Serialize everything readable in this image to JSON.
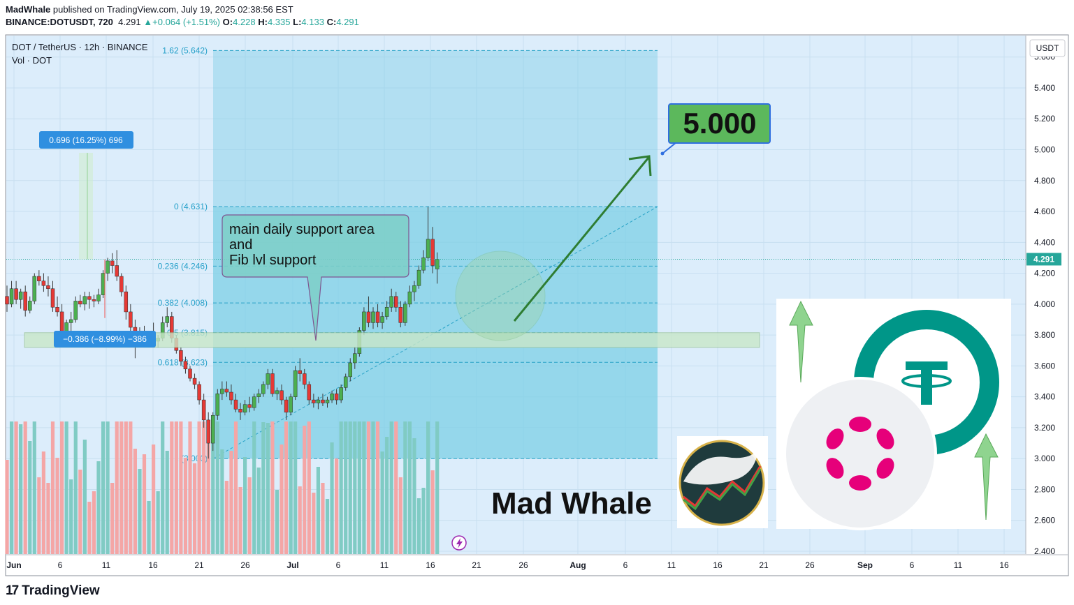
{
  "header": {
    "author": "MadWhale",
    "published_text": "published on TradingView.com, July 19, 2025 02:38:56 EST",
    "symbol": "BINANCE:DOTUSDT, 720",
    "last": "4.291",
    "change": "+0.064 (+1.51%)",
    "o_label": "O:",
    "o": "4.228",
    "h_label": "H:",
    "h": "4.335",
    "l_label": "L:",
    "l": "4.133",
    "c_label": "C:",
    "c": "4.291"
  },
  "legend": {
    "title": "DOT / TetherUS · 12h · BINANCE",
    "volume": "Vol · DOT"
  },
  "currency_button": "USDT",
  "price_badge": "4.291",
  "footer_brand": "TradingView",
  "annotations": {
    "target_label": "5.000",
    "support_note": [
      "main daily support area",
      "and",
      "Fib lvl support"
    ],
    "measure_up": "0.696 (16.25%) 696",
    "measure_down": "−0.386 (−8.99%) −386",
    "watermark": "Mad Whale"
  },
  "colors": {
    "up": "#26a69a",
    "down": "#ef5350",
    "candle_up": "#4caf50",
    "candle_down": "#e53935",
    "fib_fill": "#7ecfe6",
    "target_box": "#5cb85c",
    "arrow": "#2e7d32",
    "bg": "#dcedfb",
    "tether": "#009688",
    "polkadot": "#e6007a"
  },
  "chart_data": {
    "type": "candlestick",
    "title": "DOT / TetherUS · 12h · BINANCE",
    "ylim": [
      2.4,
      5.68
    ],
    "y_ticks": [
      "5.600",
      "5.400",
      "5.200",
      "5.000",
      "4.800",
      "4.600",
      "4.400",
      "4.200",
      "4.000",
      "3.800",
      "3.600",
      "3.400",
      "3.200",
      "3.000",
      "2.800",
      "2.600",
      "2.400"
    ],
    "x_ticks": [
      "Jun",
      "6",
      "11",
      "16",
      "21",
      "26",
      "Jul",
      "6",
      "11",
      "16",
      "21",
      "26",
      "Aug",
      "6",
      "11",
      "16",
      "21",
      "26",
      "Sep",
      "6",
      "11",
      "16"
    ],
    "fib_levels": [
      {
        "label": "0 (4.631)",
        "price": 4.631
      },
      {
        "label": "0.236 (4.246)",
        "price": 4.246
      },
      {
        "label": "0.382 (4.008)",
        "price": 4.008
      },
      {
        "label": "0.5 (3.815)",
        "price": 3.815
      },
      {
        "label": "0.618 (3.623)",
        "price": 3.623
      },
      {
        "label": "1 (3.000)",
        "price": 3.0
      },
      {
        "label": "1.62 (5.642)",
        "price": 5.642
      }
    ],
    "candles": [
      [
        4.05,
        4.12,
        3.95,
        4.0
      ],
      [
        4.0,
        4.15,
        3.98,
        4.1
      ],
      [
        4.1,
        4.15,
        4.0,
        4.03
      ],
      [
        4.03,
        4.1,
        3.97,
        4.08
      ],
      [
        4.08,
        4.12,
        3.92,
        3.96
      ],
      [
        3.96,
        4.05,
        3.94,
        4.02
      ],
      [
        4.02,
        4.2,
        4.0,
        4.18
      ],
      [
        4.18,
        4.22,
        4.12,
        4.15
      ],
      [
        4.15,
        4.2,
        4.08,
        4.12
      ],
      [
        4.12,
        4.18,
        4.05,
        4.1
      ],
      [
        4.1,
        4.15,
        3.95,
        3.98
      ],
      [
        3.98,
        4.05,
        3.92,
        3.95
      ],
      [
        3.95,
        4.0,
        3.75,
        3.78
      ],
      [
        3.78,
        3.9,
        3.75,
        3.88
      ],
      [
        3.88,
        3.95,
        3.82,
        3.9
      ],
      [
        3.9,
        4.05,
        3.88,
        4.02
      ],
      [
        4.02,
        4.06,
        3.98,
        4.0
      ],
      [
        4.0,
        4.08,
        3.96,
        4.05
      ],
      [
        4.05,
        4.08,
        3.97,
        4.03
      ],
      [
        4.03,
        4.06,
        3.98,
        4.02
      ],
      [
        4.02,
        4.1,
        4.0,
        4.06
      ],
      [
        4.06,
        4.22,
        4.04,
        4.2
      ],
      [
        4.2,
        4.3,
        4.15,
        4.28
      ],
      [
        4.28,
        4.33,
        4.2,
        4.25
      ],
      [
        4.25,
        4.35,
        4.15,
        4.18
      ],
      [
        4.18,
        4.2,
        4.05,
        4.08
      ],
      [
        4.08,
        4.12,
        3.9,
        3.95
      ],
      [
        3.95,
        4.0,
        3.8,
        3.85
      ],
      [
        3.85,
        3.9,
        3.65,
        3.8
      ],
      [
        3.8,
        3.85,
        3.75,
        3.82
      ],
      [
        3.82,
        3.86,
        3.75,
        3.78
      ],
      [
        3.78,
        3.82,
        3.72,
        3.8
      ],
      [
        3.8,
        3.88,
        3.74,
        3.76
      ],
      [
        3.76,
        3.8,
        3.72,
        3.78
      ],
      [
        3.78,
        3.92,
        3.76,
        3.88
      ],
      [
        3.88,
        3.98,
        3.85,
        3.92
      ],
      [
        3.92,
        3.95,
        3.75,
        3.78
      ],
      [
        3.78,
        3.8,
        3.68,
        3.7
      ],
      [
        3.7,
        3.72,
        3.6,
        3.63
      ],
      [
        3.63,
        3.66,
        3.55,
        3.58
      ],
      [
        3.58,
        3.6,
        3.5,
        3.52
      ],
      [
        3.52,
        3.55,
        3.45,
        3.48
      ],
      [
        3.48,
        3.5,
        3.35,
        3.38
      ],
      [
        3.38,
        3.42,
        3.2,
        3.25
      ],
      [
        3.25,
        3.3,
        3.0,
        3.1
      ],
      [
        3.1,
        3.3,
        3.05,
        3.28
      ],
      [
        3.28,
        3.45,
        3.25,
        3.42
      ],
      [
        3.42,
        3.5,
        3.38,
        3.45
      ],
      [
        3.45,
        3.5,
        3.4,
        3.43
      ],
      [
        3.43,
        3.48,
        3.35,
        3.38
      ],
      [
        3.38,
        3.42,
        3.3,
        3.32
      ],
      [
        3.32,
        3.36,
        3.25,
        3.3
      ],
      [
        3.3,
        3.38,
        3.28,
        3.35
      ],
      [
        3.35,
        3.4,
        3.3,
        3.33
      ],
      [
        3.33,
        3.42,
        3.31,
        3.4
      ],
      [
        3.4,
        3.45,
        3.36,
        3.42
      ],
      [
        3.42,
        3.5,
        3.4,
        3.48
      ],
      [
        3.48,
        3.58,
        3.45,
        3.55
      ],
      [
        3.55,
        3.58,
        3.4,
        3.42
      ],
      [
        3.42,
        3.46,
        3.38,
        3.44
      ],
      [
        3.44,
        3.48,
        3.35,
        3.38
      ],
      [
        3.38,
        3.4,
        3.25,
        3.3
      ],
      [
        3.3,
        3.42,
        3.28,
        3.4
      ],
      [
        3.4,
        3.6,
        3.38,
        3.57
      ],
      [
        3.57,
        3.65,
        3.5,
        3.55
      ],
      [
        3.55,
        3.58,
        3.45,
        3.48
      ],
      [
        3.48,
        3.5,
        3.35,
        3.38
      ],
      [
        3.38,
        3.42,
        3.33,
        3.36
      ],
      [
        3.36,
        3.4,
        3.32,
        3.38
      ],
      [
        3.38,
        3.42,
        3.34,
        3.36
      ],
      [
        3.36,
        3.4,
        3.33,
        3.38
      ],
      [
        3.38,
        3.44,
        3.36,
        3.42
      ],
      [
        3.42,
        3.45,
        3.35,
        3.38
      ],
      [
        3.38,
        3.48,
        3.36,
        3.46
      ],
      [
        3.46,
        3.55,
        3.44,
        3.53
      ],
      [
        3.53,
        3.65,
        3.5,
        3.62
      ],
      [
        3.62,
        3.72,
        3.58,
        3.68
      ],
      [
        3.68,
        3.85,
        3.66,
        3.83
      ],
      [
        3.83,
        3.98,
        3.8,
        3.95
      ],
      [
        3.95,
        4.05,
        3.85,
        3.88
      ],
      [
        3.88,
        3.98,
        3.84,
        3.95
      ],
      [
        3.95,
        4.0,
        3.85,
        3.88
      ],
      [
        3.88,
        3.95,
        3.84,
        3.92
      ],
      [
        3.92,
        4.02,
        3.9,
        3.98
      ],
      [
        3.98,
        4.1,
        3.95,
        4.05
      ],
      [
        4.05,
        4.08,
        3.95,
        3.98
      ],
      [
        3.98,
        4.02,
        3.85,
        3.88
      ],
      [
        3.88,
        4.02,
        3.86,
        4.0
      ],
      [
        4.0,
        4.12,
        3.98,
        4.08
      ],
      [
        4.08,
        4.15,
        4.02,
        4.12
      ],
      [
        4.12,
        4.25,
        4.1,
        4.22
      ],
      [
        4.22,
        4.35,
        4.2,
        4.3
      ],
      [
        4.3,
        4.63,
        4.28,
        4.42
      ],
      [
        4.42,
        4.5,
        4.2,
        4.25
      ],
      [
        4.228,
        4.335,
        4.133,
        4.291
      ]
    ],
    "volume_note": "Vol · DOT histogram at bottom"
  }
}
